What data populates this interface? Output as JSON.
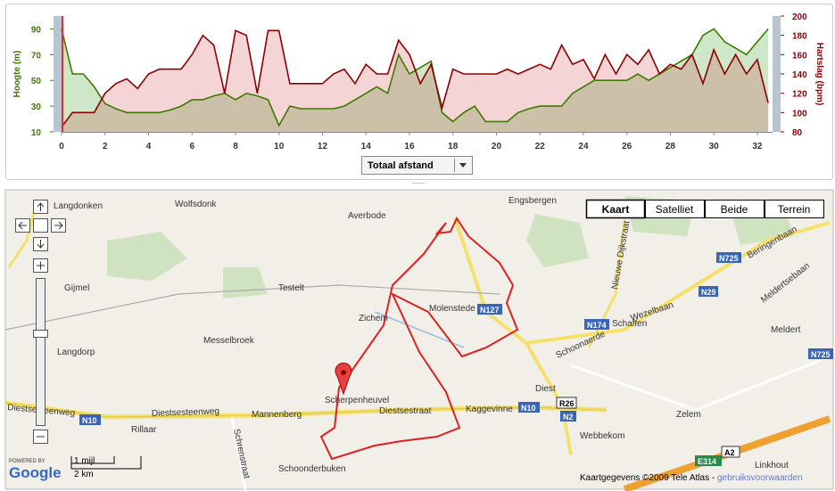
{
  "chart_data": {
    "type": "line",
    "x": [
      0,
      0.5,
      1,
      1.5,
      2,
      2.5,
      3,
      3.5,
      4,
      4.5,
      5,
      5.5,
      6,
      6.5,
      7,
      7.5,
      8,
      8.5,
      9,
      9.5,
      10,
      10.5,
      11,
      11.5,
      12,
      12.5,
      13,
      13.5,
      14,
      14.5,
      15,
      15.5,
      16,
      16.5,
      17,
      17.5,
      18,
      18.5,
      19,
      19.5,
      20,
      20.5,
      21,
      21.5,
      22,
      22.5,
      23,
      23.5,
      24,
      24.5,
      25,
      25.5,
      26,
      26.5,
      27,
      27.5,
      28,
      28.5,
      29,
      29.5,
      30,
      30.5,
      31,
      31.5,
      32,
      32.5
    ],
    "series": [
      {
        "name": "Hoogte (m)",
        "color": "#3d7a00",
        "fill": "rgba(60,160,40,0.25)",
        "values": [
          90,
          55,
          55,
          45,
          32,
          28,
          25,
          25,
          25,
          25,
          27,
          30,
          35,
          35,
          38,
          40,
          35,
          40,
          38,
          35,
          15,
          30,
          28,
          28,
          28,
          28,
          30,
          35,
          40,
          45,
          40,
          70,
          55,
          60,
          65,
          25,
          18,
          25,
          30,
          18,
          18,
          18,
          25,
          28,
          30,
          30,
          30,
          40,
          45,
          50,
          50,
          50,
          50,
          55,
          50,
          55,
          60,
          65,
          70,
          85,
          90,
          80,
          75,
          70,
          80,
          90
        ]
      },
      {
        "name": "Hartslag (bpm)",
        "color": "#8b0000",
        "fill": "rgba(200,40,40,0.2)",
        "axis": "y2",
        "values": [
          85,
          100,
          100,
          100,
          120,
          130,
          135,
          125,
          140,
          145,
          145,
          145,
          160,
          180,
          170,
          120,
          185,
          180,
          120,
          185,
          185,
          130,
          130,
          130,
          130,
          140,
          145,
          130,
          150,
          140,
          140,
          175,
          160,
          130,
          150,
          105,
          145,
          140,
          140,
          140,
          140,
          145,
          140,
          145,
          150,
          145,
          170,
          150,
          155,
          135,
          160,
          140,
          160,
          150,
          165,
          140,
          150,
          145,
          160,
          130,
          165,
          140,
          160,
          140,
          155,
          110
        ]
      }
    ],
    "xlim": [
      0,
      32.7
    ],
    "xticks": [
      0,
      2,
      4,
      6,
      8,
      10,
      12,
      14,
      16,
      18,
      20,
      22,
      24,
      26,
      28,
      30,
      32
    ],
    "ylim": [
      10,
      100
    ],
    "yticks": [
      10,
      30,
      50,
      70,
      90
    ],
    "y2lim": [
      80,
      200
    ],
    "y2ticks": [
      80,
      100,
      120,
      140,
      160,
      180,
      200
    ]
  },
  "selector": "Totaal afstand",
  "map": {
    "labels": [
      "Langdonken",
      "Wolfsdonk",
      "Averbode",
      "Engsbergen",
      "Gijmel",
      "Testelt",
      "Molenstede",
      "Zichem",
      "Schaffen",
      "Meldert",
      "Messelbroek",
      "Langdorp",
      "Scherpenheuvel",
      "Diest",
      "Rillaar",
      "Mannenberg",
      "Diestsestraat",
      "Kaggevinne",
      "Zelem",
      "Webbekom",
      "Linkhout",
      "Schoonderbuken",
      "Diestsesteenweg",
      "Diestsesteenweg",
      "Schoonaerde",
      "Wezelbaan",
      "Nieuwe Dijkstraat",
      "Beringenbaan",
      "Meldertsebaan",
      "Schrenstraat"
    ],
    "shields": [
      "N127",
      "N174",
      "N725",
      "N29",
      "N725",
      "R26",
      "N2",
      "N10",
      "N10",
      "A2",
      "E314"
    ],
    "map_types": [
      "Kaart",
      "Satelliet",
      "Beide",
      "Terrein"
    ],
    "scale": [
      "1 mijl",
      "2 km"
    ],
    "powered_by": "POWERED BY",
    "logo": "Google",
    "attribution": "Kaartgegevens ©2009 Tele Atlas - ",
    "terms": "gebruiksvoorwaarden"
  }
}
